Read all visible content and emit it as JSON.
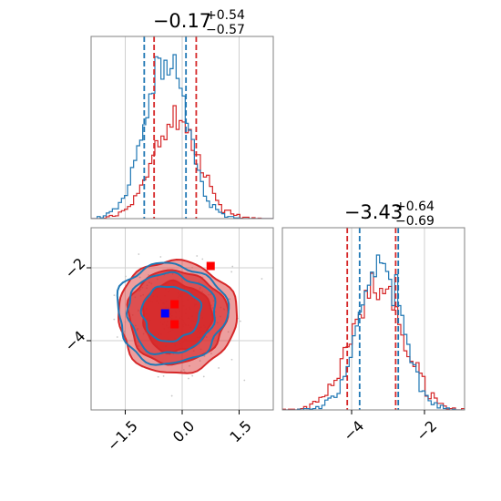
{
  "colors": {
    "series_a": "#d62728",
    "series_b": "#1f77b4",
    "marker_b": "#0000ff",
    "marker_a": "#ff0000",
    "grid": "#cfcfcf",
    "frame": "#808080"
  },
  "chart_data": [
    {
      "panel": "marginal-1",
      "type": "histogram",
      "title": {
        "main": "−0.17",
        "sup": "+0.54",
        "sub": "−0.57"
      },
      "xlim": [
        -2.4,
        2.4
      ],
      "grid": true,
      "series": [
        {
          "color": "red",
          "center": -0.17,
          "width": 0.6,
          "quantile_lines": [
            -0.74,
            0.37
          ]
        },
        {
          "color": "blue",
          "center": -0.45,
          "width": 0.55,
          "quantile_lines": [
            -1.0,
            0.1
          ]
        }
      ]
    },
    {
      "panel": "joint",
      "type": "contour",
      "xlim": [
        -2.4,
        2.4
      ],
      "ylim": [
        -5.9,
        -0.9
      ],
      "xticks": [
        -1.5,
        0.0,
        1.5
      ],
      "xtick_labels": [
        "−1.5",
        "0.0",
        "1.5"
      ],
      "yticks": [
        -2,
        -4
      ],
      "ytick_labels": [
        "−2",
        "−4"
      ],
      "grid": true,
      "markers": [
        {
          "color": "blue",
          "x": -0.45,
          "y": -3.25
        },
        {
          "color": "red",
          "x": -0.2,
          "y": -3.0
        },
        {
          "color": "red",
          "x": -0.2,
          "y": -3.55
        },
        {
          "color": "red",
          "x": 0.75,
          "y": -1.95
        }
      ]
    },
    {
      "panel": "marginal-2",
      "type": "histogram",
      "title": {
        "main": "−3.43",
        "sup": "+0.64",
        "sub": "−0.69"
      },
      "xlim": [
        -5.9,
        -0.9
      ],
      "xticks": [
        -4,
        -2
      ],
      "xtick_labels": [
        "−4",
        "−2"
      ],
      "grid": true,
      "series": [
        {
          "color": "red",
          "center": -3.3,
          "width": 0.7,
          "quantile_lines": [
            -4.12,
            -2.79
          ]
        },
        {
          "color": "blue",
          "center": -3.2,
          "width": 0.6,
          "quantile_lines": [
            -3.78,
            -2.72
          ]
        }
      ]
    }
  ]
}
